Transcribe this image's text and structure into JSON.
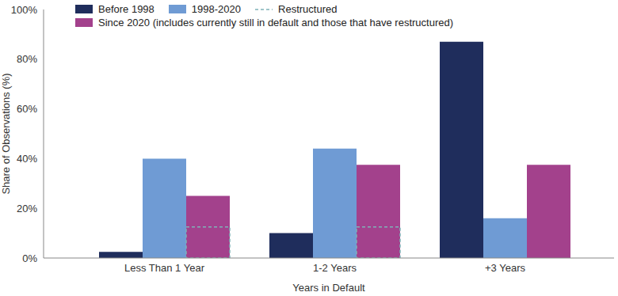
{
  "chart_data": {
    "type": "bar",
    "categories": [
      "Less Than 1 Year",
      "1-2 Years",
      "+3 Years"
    ],
    "x_label": "Years in Default",
    "y_label": "Share of Observations (%)",
    "ylim": [
      0,
      100
    ],
    "yticks": [
      {
        "value": 0,
        "label": "0%"
      },
      {
        "value": 20,
        "label": "20%"
      },
      {
        "value": 40,
        "label": "40%"
      },
      {
        "value": 60,
        "label": "60%"
      },
      {
        "value": 80,
        "label": "80%"
      },
      {
        "value": 100,
        "label": "100%"
      }
    ],
    "grid": false,
    "legend": "top left",
    "series": [
      {
        "name": "Before 1998",
        "color": "#1f2d5c",
        "values": [
          2.5,
          10,
          87
        ]
      },
      {
        "name": "1998-2020",
        "color": "#6f9bd4",
        "values": [
          40,
          44,
          16
        ]
      },
      {
        "name": "Restructured",
        "color": "#7fb3b8",
        "type": "outline",
        "line_style": "dashed",
        "values": [
          12.5,
          12.5,
          null
        ]
      },
      {
        "name": "Since 2020 (includes currently still in default and those that have restructured)",
        "color": "#a3418c",
        "values": [
          25,
          37.5,
          37.5
        ]
      }
    ]
  }
}
